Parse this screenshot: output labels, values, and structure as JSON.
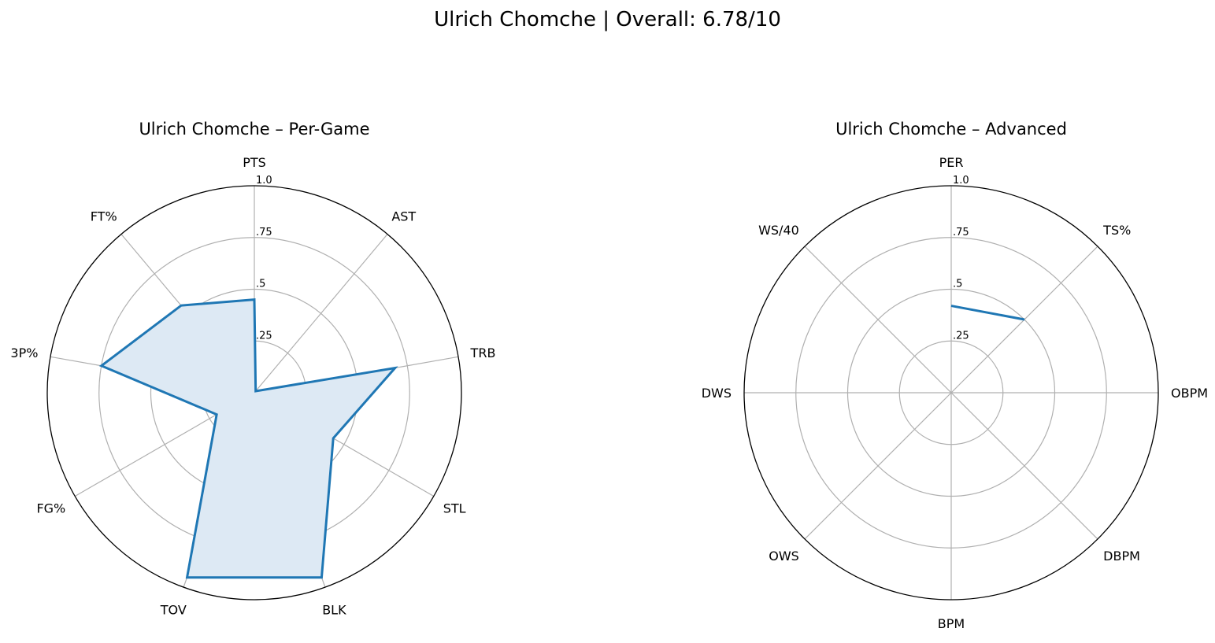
{
  "figure": {
    "title": "Ulrich Chomche | Overall: 6.78/10"
  },
  "chart_data": [
    {
      "type": "radar",
      "title": "Ulrich Chomche – Per-Game",
      "categories": [
        "PTS",
        "AST",
        "TRB",
        "STL",
        "BLK",
        "TOV",
        "FG%",
        "3P%",
        "FT%"
      ],
      "values": [
        0.45,
        0.01,
        0.69,
        0.44,
        0.95,
        0.95,
        0.21,
        0.75,
        0.55
      ],
      "rlim": [
        0,
        1
      ],
      "rticks": [
        0.25,
        0.5,
        0.75,
        1.0
      ],
      "rtick_labels": [
        ".25",
        ".5",
        ".75",
        "1.0"
      ],
      "fill": true,
      "line_color": "#1f77b4",
      "fill_color": "#dde9f4",
      "grid": true
    },
    {
      "type": "radar",
      "title": "Ulrich Chomche – Advanced",
      "categories": [
        "PER",
        "TS%",
        "OBPM",
        "DBPM",
        "BPM",
        "OWS",
        "DWS",
        "WS/40"
      ],
      "values": [
        0.42,
        0.5,
        null,
        null,
        null,
        null,
        null,
        null
      ],
      "rlim": [
        0,
        1
      ],
      "rticks": [
        0.25,
        0.5,
        0.75,
        1.0
      ],
      "rtick_labels": [
        ".25",
        ".5",
        ".75",
        "1.0"
      ],
      "fill": false,
      "line_color": "#1f77b4",
      "grid": true
    }
  ]
}
